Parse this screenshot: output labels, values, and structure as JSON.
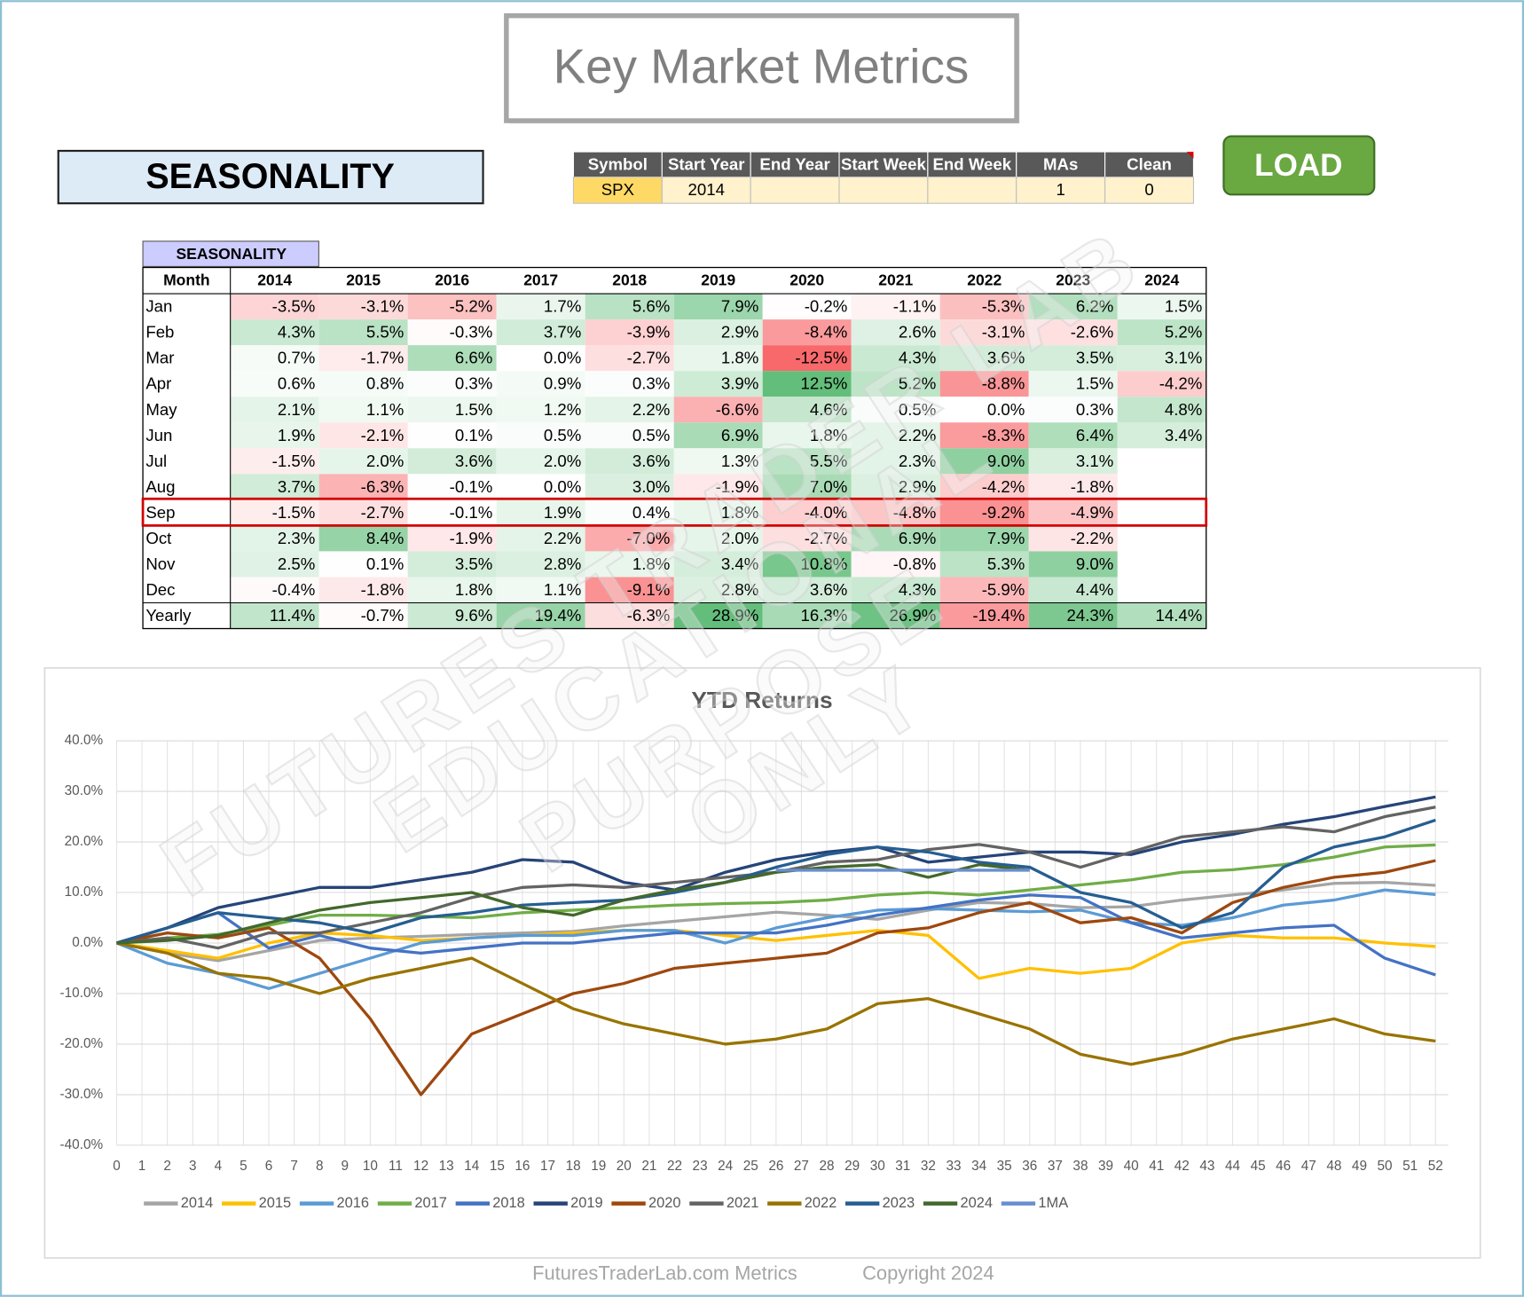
{
  "header": {
    "title": "Key Market Metrics",
    "section": "SEASONALITY"
  },
  "inputs": {
    "columns": [
      "Symbol",
      "Start Year",
      "End Year",
      "Start Week",
      "End Week",
      "MAs",
      "Clean"
    ],
    "values": [
      "SPX",
      2014,
      null,
      null,
      null,
      1,
      0
    ]
  },
  "load_button": "LOAD",
  "seasonality": {
    "label": "SEASONALITY",
    "columns": [
      "Month",
      "2014",
      "2015",
      "2016",
      "2017",
      "2018",
      "2019",
      "2020",
      "2021",
      "2022",
      "2023",
      "2024"
    ],
    "rows": [
      [
        "Jan",
        "-3.5%",
        "-3.1%",
        "-5.2%",
        "1.7%",
        "5.6%",
        "7.9%",
        "-0.2%",
        "-1.1%",
        "-5.3%",
        "6.2%",
        "1.5%"
      ],
      [
        "Feb",
        "4.3%",
        "5.5%",
        "-0.3%",
        "3.7%",
        "-3.9%",
        "2.9%",
        "-8.4%",
        "2.6%",
        "-3.1%",
        "-2.6%",
        "5.2%"
      ],
      [
        "Mar",
        "0.7%",
        "-1.7%",
        "6.6%",
        "0.0%",
        "-2.7%",
        "1.8%",
        "-12.5%",
        "4.3%",
        "3.6%",
        "3.5%",
        "3.1%"
      ],
      [
        "Apr",
        "0.6%",
        "0.8%",
        "0.3%",
        "0.9%",
        "0.3%",
        "3.9%",
        "12.5%",
        "5.2%",
        "-8.8%",
        "1.5%",
        "-4.2%"
      ],
      [
        "May",
        "2.1%",
        "1.1%",
        "1.5%",
        "1.2%",
        "2.2%",
        "-6.6%",
        "4.6%",
        "0.5%",
        "0.0%",
        "0.3%",
        "4.8%"
      ],
      [
        "Jun",
        "1.9%",
        "-2.1%",
        "0.1%",
        "0.5%",
        "0.5%",
        "6.9%",
        "1.8%",
        "2.2%",
        "-8.3%",
        "6.4%",
        "3.4%"
      ],
      [
        "Jul",
        "-1.5%",
        "2.0%",
        "3.6%",
        "2.0%",
        "3.6%",
        "1.3%",
        "5.5%",
        "2.3%",
        "9.0%",
        "3.1%",
        null
      ],
      [
        "Aug",
        "3.7%",
        "-6.3%",
        "-0.1%",
        "0.0%",
        "3.0%",
        "-1.9%",
        "7.0%",
        "2.9%",
        "-4.2%",
        "-1.8%",
        null
      ],
      [
        "Sep",
        "-1.5%",
        "-2.7%",
        "-0.1%",
        "1.9%",
        "0.4%",
        "1.8%",
        "-4.0%",
        "-4.8%",
        "-9.2%",
        "-4.9%",
        null
      ],
      [
        "Oct",
        "2.3%",
        "8.4%",
        "-1.9%",
        "2.2%",
        "-7.0%",
        "2.0%",
        "-2.7%",
        "6.9%",
        "7.9%",
        "-2.2%",
        null
      ],
      [
        "Nov",
        "2.5%",
        "0.1%",
        "3.5%",
        "2.8%",
        "1.8%",
        "3.4%",
        "10.8%",
        "-0.8%",
        "5.3%",
        "9.0%",
        null
      ],
      [
        "Dec",
        "-0.4%",
        "-1.8%",
        "1.8%",
        "1.1%",
        "-9.1%",
        "2.8%",
        "3.6%",
        "4.3%",
        "-5.9%",
        "4.4%",
        null
      ],
      [
        "Yearly",
        "11.4%",
        "-0.7%",
        "9.6%",
        "19.4%",
        "-6.3%",
        "28.9%",
        "16.3%",
        "26.9%",
        "-19.4%",
        "24.3%",
        "14.4%"
      ]
    ]
  },
  "chart_data": {
    "type": "line",
    "title": "YTD Returns",
    "x": [
      0,
      2,
      4,
      6,
      8,
      10,
      12,
      14,
      16,
      18,
      20,
      22,
      24,
      26,
      28,
      30,
      32,
      34,
      36,
      38,
      40,
      42,
      44,
      46,
      48,
      50,
      52
    ],
    "xlim": [
      0,
      52.5
    ],
    "xticks": [
      0,
      1,
      2,
      3,
      4,
      5,
      6,
      7,
      8,
      9,
      10,
      11,
      12,
      13,
      14,
      15,
      16,
      17,
      18,
      19,
      20,
      21,
      22,
      23,
      24,
      25,
      26,
      27,
      28,
      29,
      30,
      31,
      32,
      33,
      34,
      35,
      36,
      37,
      38,
      39,
      40,
      41,
      42,
      43,
      44,
      45,
      46,
      47,
      48,
      49,
      50,
      51,
      52
    ],
    "ylim": [
      -40,
      40
    ],
    "yticks": [
      {
        "value": -40,
        "label": "-40.0%"
      },
      {
        "value": -30,
        "label": "-30.0%"
      },
      {
        "value": -20,
        "label": "-20.0%"
      },
      {
        "value": -10,
        "label": "-10.0%"
      },
      {
        "value": 0,
        "label": "0.0%"
      },
      {
        "value": 10,
        "label": "10.0%"
      },
      {
        "value": 20,
        "label": "20.0%"
      },
      {
        "value": 30,
        "label": "30.0%"
      },
      {
        "value": 40,
        "label": "40.0%"
      }
    ],
    "grid": true,
    "legend": "bottom",
    "series": [
      {
        "name": "2014",
        "color": "#a5a5a5",
        "values": [
          0,
          -2,
          -3.5,
          -1.5,
          0.5,
          1,
          1.3,
          1.7,
          2,
          2.3,
          3.4,
          4.3,
          5.2,
          6.1,
          5.5,
          4.7,
          6.5,
          8,
          7.8,
          7,
          7.2,
          8.5,
          9.5,
          10.5,
          11.8,
          12,
          11.4
        ]
      },
      {
        "name": "2015",
        "color": "#ffc000",
        "values": [
          0,
          -1.5,
          -3,
          0,
          2,
          1.5,
          0.5,
          1,
          1.5,
          2,
          2.5,
          2.5,
          1.5,
          0.5,
          1.5,
          2.5,
          1.5,
          -7,
          -5,
          -6,
          -5,
          0,
          1.5,
          1,
          1,
          0,
          -0.7
        ]
      },
      {
        "name": "2016",
        "color": "#5b9bd5",
        "values": [
          0,
          -4,
          -6,
          -9,
          -6,
          -3,
          0,
          1,
          1.5,
          1.5,
          2.5,
          2.5,
          0,
          3,
          5,
          6.5,
          6.8,
          6.5,
          6.2,
          6.5,
          4,
          3.5,
          5,
          7.5,
          8.5,
          10.5,
          9.6
        ]
      },
      {
        "name": "2017",
        "color": "#70ad47",
        "values": [
          0,
          1,
          1.7,
          3.5,
          5.5,
          5.5,
          5.3,
          5,
          6,
          6.5,
          7,
          7.5,
          7.8,
          8,
          8.5,
          9.5,
          10,
          9.5,
          10.5,
          11.5,
          12.5,
          14,
          14.5,
          15.5,
          17,
          19,
          19.4
        ]
      },
      {
        "name": "2018",
        "color": "#4472c4",
        "values": [
          0,
          3,
          6,
          -1,
          1.5,
          -1,
          -2,
          -1,
          0,
          0,
          1,
          2,
          2,
          2,
          3.5,
          5.5,
          7,
          8.5,
          9.5,
          9,
          4,
          1,
          2,
          3,
          3.5,
          -3,
          -6.3
        ]
      },
      {
        "name": "2019",
        "color": "#264478",
        "values": [
          0,
          3,
          7,
          9,
          11,
          11,
          12.5,
          14,
          16.5,
          16,
          12,
          10.5,
          14,
          16.5,
          18,
          19,
          16,
          17,
          18,
          18,
          17.5,
          20,
          21.5,
          23.5,
          25,
          27,
          28.9
        ]
      },
      {
        "name": "2020",
        "color": "#9e480e",
        "values": [
          0,
          2,
          1,
          3,
          -3,
          -15,
          -30,
          -18,
          -14,
          -10,
          -8,
          -5,
          -4,
          -3,
          -2,
          2,
          3,
          6,
          8,
          4,
          5,
          2,
          8,
          11,
          13,
          14,
          16.3
        ]
      },
      {
        "name": "2021",
        "color": "#636363",
        "values": [
          0,
          1,
          -1,
          2,
          2,
          4,
          6,
          9,
          11,
          11.5,
          11,
          12,
          13,
          14,
          16,
          16.5,
          18.5,
          19.5,
          18,
          15,
          18,
          21,
          22,
          23,
          22,
          25,
          26.9
        ]
      },
      {
        "name": "2022",
        "color": "#997300",
        "values": [
          0,
          -2,
          -6,
          -7,
          -10,
          -7,
          -5,
          -3,
          -8,
          -13,
          -16,
          -18,
          -20,
          -19,
          -17,
          -12,
          -11,
          -14,
          -17,
          -22,
          -24,
          -22,
          -19,
          -17,
          -15,
          -18,
          -19.4
        ]
      },
      {
        "name": "2023",
        "color": "#255e91",
        "values": [
          0,
          3,
          6,
          5,
          4,
          2,
          5,
          6,
          7.5,
          8,
          8.5,
          10,
          12,
          15,
          17.5,
          19,
          18,
          16,
          15,
          10,
          8,
          3,
          6,
          15,
          19,
          21,
          24.3
        ]
      },
      {
        "name": "2024",
        "color": "#43682b",
        "values": [
          0,
          0.5,
          1.5,
          4,
          6.5,
          8,
          9,
          10,
          7,
          5.5,
          8.5,
          10.5,
          12,
          14,
          15,
          15.5,
          13,
          15.5,
          14.4,
          null,
          null,
          null,
          null,
          null,
          null,
          null,
          null
        ]
      },
      {
        "name": "1MA",
        "color": "#698ed0",
        "values": [
          null,
          null,
          null,
          null,
          null,
          null,
          null,
          null,
          null,
          null,
          null,
          null,
          null,
          14.4,
          14.4,
          14.4,
          14.4,
          14.4,
          14.4,
          null,
          null,
          null,
          null,
          null,
          null,
          null,
          null
        ]
      }
    ]
  },
  "watermark": [
    "FUTURES TRADER LAB",
    "EDUCATIONAL",
    "PURPOSE",
    "ONLY"
  ],
  "footer": {
    "site": "FuturesTraderLab.com Metrics",
    "copyright": "Copyright 2024"
  }
}
